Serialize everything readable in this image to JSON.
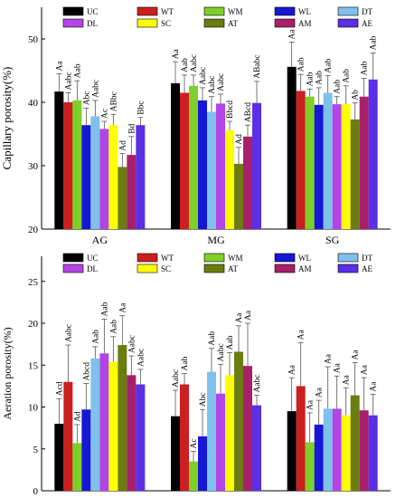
{
  "colors": {
    "UC": "#000000",
    "WT": "#cc1f1f",
    "WM": "#7fcf2a",
    "WL": "#1717d6",
    "DT": "#7fc1ec",
    "DL": "#b344e6",
    "SC": "#ffff00",
    "AT": "#6b7d11",
    "AM": "#a8206b",
    "AE": "#5a2fe6"
  },
  "chart_data": [
    {
      "type": "bar",
      "ylabel": "Capillary porosity(%)",
      "ylim": [
        20,
        55
      ],
      "yticks": [
        20,
        30,
        40,
        50
      ],
      "grid": false,
      "legend_position": "top",
      "legend": [
        "UC",
        "WT",
        "WM",
        "WL",
        "DT",
        "DL",
        "SC",
        "AT",
        "AM",
        "AE"
      ],
      "categories": [
        "AG",
        "MG",
        "SG"
      ],
      "series": [
        {
          "name": "UC",
          "values": [
            41.7,
            43.0,
            45.6
          ],
          "errors": [
            2.8,
            3.4,
            3.9
          ],
          "labels": [
            "Aa",
            "Aa",
            "Aa"
          ]
        },
        {
          "name": "WT",
          "values": [
            40.0,
            41.5,
            41.8
          ],
          "errors": [
            1.5,
            2.8,
            2.6
          ],
          "labels": [
            "Aabc",
            "Aab",
            "Aab"
          ]
        },
        {
          "name": "WM",
          "values": [
            40.3,
            42.6,
            40.9
          ],
          "errors": [
            3.1,
            1.7,
            1.2
          ],
          "labels": [
            "Aab",
            "Aabc",
            "Aab"
          ]
        },
        {
          "name": "WL",
          "values": [
            36.4,
            40.3,
            39.6
          ],
          "errors": [
            2.7,
            2.0,
            2.7
          ],
          "labels": [
            "Abc",
            "Aabc",
            "Aab"
          ]
        },
        {
          "name": "DT",
          "values": [
            37.8,
            38.5,
            41.5
          ],
          "errors": [
            2.5,
            2.4,
            2.7
          ],
          "labels": [
            "Aabc",
            "Aabc",
            "Aab"
          ]
        },
        {
          "name": "DL",
          "values": [
            35.8,
            39.8,
            39.7
          ],
          "errors": [
            1.2,
            1.5,
            1.2
          ],
          "labels": [
            "Ac",
            "Aabc",
            "Aab"
          ]
        },
        {
          "name": "SC",
          "values": [
            36.4,
            35.6,
            39.7
          ],
          "errors": [
            1.7,
            1.4,
            2.9
          ],
          "labels": [
            "ABbc",
            "Bbcd",
            "Aab"
          ]
        },
        {
          "name": "AT",
          "values": [
            29.8,
            30.3,
            37.3
          ],
          "errors": [
            2.1,
            2.6,
            2.6
          ],
          "labels": [
            "Ad",
            "Ad",
            "Ab"
          ]
        },
        {
          "name": "AM",
          "values": [
            31.7,
            34.6,
            40.9
          ],
          "errors": [
            2.9,
            1.8,
            2.9
          ],
          "labels": [
            "Bd",
            "ABcd",
            "Aab"
          ]
        },
        {
          "name": "AE",
          "values": [
            36.4,
            39.9,
            43.6
          ],
          "errors": [
            1.2,
            3.4,
            4.2
          ],
          "labels": [
            "Bbc",
            "ABabc",
            "Aab"
          ]
        }
      ]
    },
    {
      "type": "bar",
      "ylabel": "Aeration porosity(%)",
      "ylim": [
        0,
        28
      ],
      "yticks": [
        0,
        5,
        10,
        15,
        20,
        25
      ],
      "grid": false,
      "legend_position": "top",
      "legend": [
        "UC",
        "WT",
        "WM",
        "WL",
        "DT",
        "DL",
        "SC",
        "AT",
        "AM",
        "AE"
      ],
      "categories": [
        "AG",
        "MG",
        "SG"
      ],
      "series": [
        {
          "name": "UC",
          "values": [
            8.0,
            8.9,
            9.5
          ],
          "errors": [
            3.0,
            3.1,
            4.0
          ],
          "labels": [
            "Acd",
            "Aabc",
            "Aa"
          ]
        },
        {
          "name": "WT",
          "values": [
            13.0,
            12.7,
            12.5
          ],
          "errors": [
            4.4,
            1.3,
            5.2
          ],
          "labels": [
            "Aabc",
            "Aab",
            "Aa"
          ]
        },
        {
          "name": "WM",
          "values": [
            5.7,
            3.5,
            5.8
          ],
          "errors": [
            2.2,
            1.2,
            3.5
          ],
          "labels": [
            "Ad",
            "Ac",
            "Aa"
          ]
        },
        {
          "name": "WL",
          "values": [
            9.7,
            6.5,
            7.9
          ],
          "errors": [
            3.1,
            3.2,
            2.9
          ],
          "labels": [
            "Abcd",
            "Abc",
            "Aa"
          ]
        },
        {
          "name": "DT",
          "values": [
            15.8,
            14.2,
            9.8
          ],
          "errors": [
            1.4,
            2.8,
            5.0
          ],
          "labels": [
            "Aab",
            "Aab",
            "Aa"
          ]
        },
        {
          "name": "DL",
          "values": [
            16.4,
            11.6,
            9.8
          ],
          "errors": [
            4.1,
            3.5,
            3.9
          ],
          "labels": [
            "Aab",
            "Aabc",
            "Aa"
          ]
        },
        {
          "name": "SC",
          "values": [
            15.4,
            13.8,
            9.0
          ],
          "errors": [
            3.0,
            2.7,
            3.3
          ],
          "labels": [
            "Aab",
            "Aab",
            "Aa"
          ]
        },
        {
          "name": "AT",
          "values": [
            17.4,
            16.6,
            11.4
          ],
          "errors": [
            3.5,
            3.1,
            3.9
          ],
          "labels": [
            "Aa",
            "Aa",
            "Aa"
          ]
        },
        {
          "name": "AM",
          "values": [
            13.8,
            14.9,
            9.6
          ],
          "errors": [
            2.3,
            5.1,
            3.9
          ],
          "labels": [
            "Aabc",
            "Aa",
            "Aa"
          ]
        },
        {
          "name": "AE",
          "values": [
            12.7,
            10.2,
            9.0
          ],
          "errors": [
            1.8,
            1.2,
            2.5
          ],
          "labels": [
            "Aabc",
            "Aabc",
            "Aa"
          ]
        }
      ]
    }
  ]
}
